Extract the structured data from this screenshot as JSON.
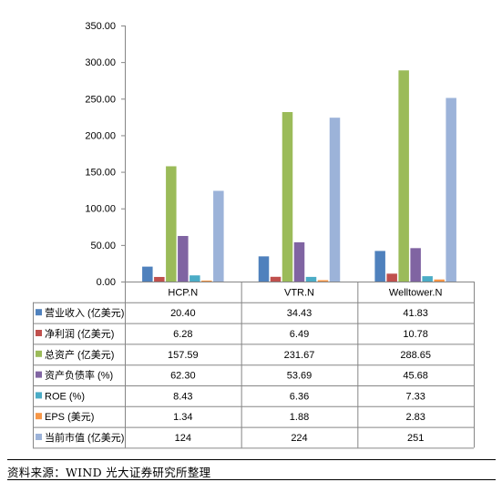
{
  "chart_data": {
    "type": "bar",
    "categories": [
      "HCP.N",
      "VTR.N",
      "Welltower.N"
    ],
    "ylim": [
      0,
      350
    ],
    "yticks": [
      "0.00",
      "50.00",
      "100.00",
      "150.00",
      "200.00",
      "250.00",
      "300.00",
      "350.00"
    ],
    "grid": false,
    "legend": "data table rows",
    "series": [
      {
        "name": "营业收入 (亿美元)",
        "color": "#4F81BD",
        "values": [
          20.4,
          34.43,
          41.83
        ],
        "labels": [
          "20.40",
          "34.43",
          "41.83"
        ]
      },
      {
        "name": "净利润 (亿美元)",
        "color": "#C0504D",
        "values": [
          6.28,
          6.49,
          10.78
        ],
        "labels": [
          "6.28",
          "6.49",
          "10.78"
        ]
      },
      {
        "name": "总资产 (亿美元)",
        "color": "#9BBB59",
        "values": [
          157.59,
          231.67,
          288.65
        ],
        "labels": [
          "157.59",
          "231.67",
          "288.65"
        ]
      },
      {
        "name": "资产负债率 (%)",
        "color": "#8064A2",
        "values": [
          62.3,
          53.69,
          45.68
        ],
        "labels": [
          "62.30",
          "53.69",
          "45.68"
        ]
      },
      {
        "name": "ROE (%)",
        "color": "#4BACC6",
        "values": [
          8.43,
          6.36,
          7.33
        ],
        "labels": [
          "8.43",
          "6.36",
          "7.33"
        ]
      },
      {
        "name": "EPS (美元)",
        "color": "#F79646",
        "values": [
          1.34,
          1.88,
          2.83
        ],
        "labels": [
          "1.34",
          "1.88",
          "2.83"
        ]
      },
      {
        "name": "当前市值 (亿美元)",
        "color": "#9CB3D9",
        "values": [
          124,
          224,
          251
        ],
        "labels": [
          "124",
          "224",
          "251"
        ]
      }
    ]
  },
  "source": "资料来源：WIND  光大证券研究所整理"
}
